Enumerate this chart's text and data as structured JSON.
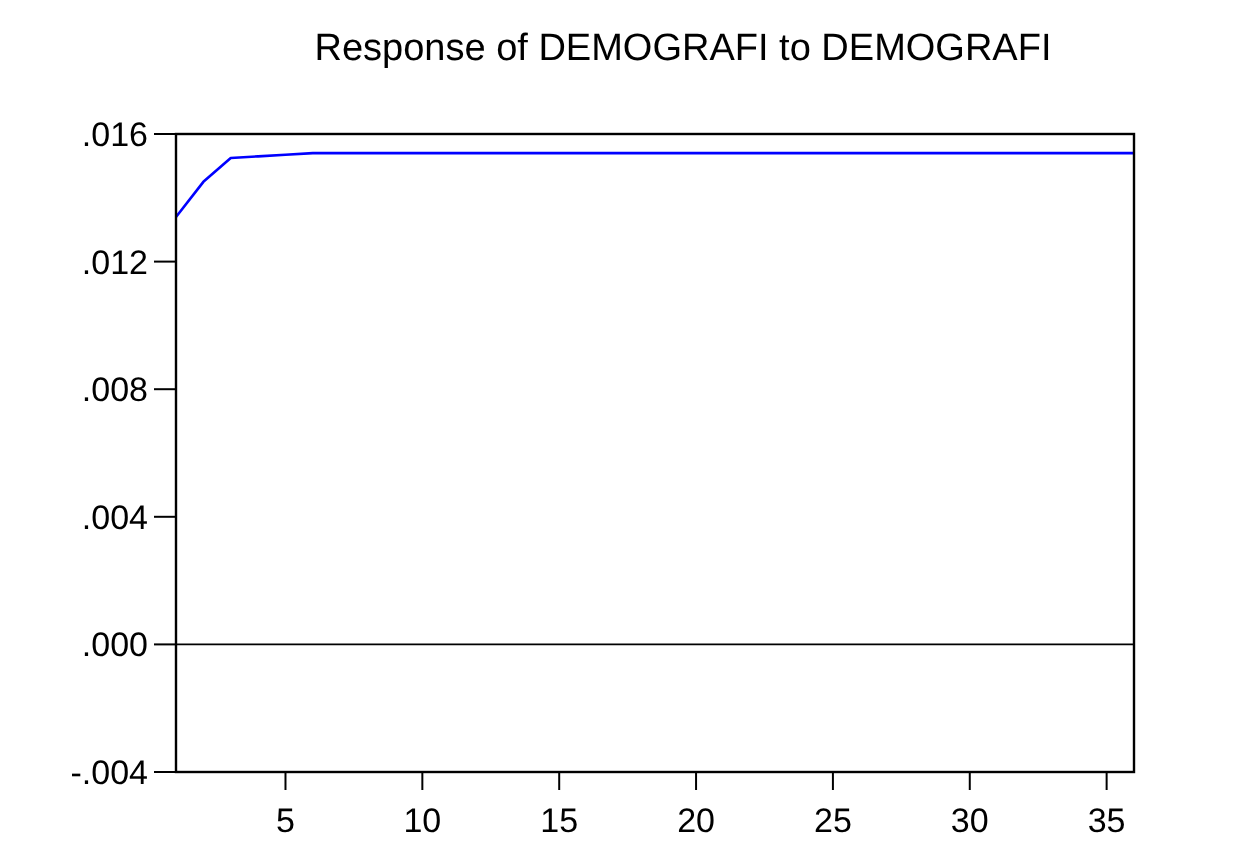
{
  "chart_data": {
    "type": "line",
    "title": "Response of DEMOGRAFI to DEMOGRAFI",
    "x": [
      1,
      2,
      3,
      4,
      5,
      6,
      7,
      8,
      9,
      10,
      11,
      12,
      13,
      14,
      15,
      16,
      17,
      18,
      19,
      20,
      21,
      22,
      23,
      24,
      25,
      26,
      27,
      28,
      29,
      30,
      31,
      32,
      33,
      34,
      35,
      36
    ],
    "series": [
      {
        "color": "#0000ff",
        "values": [
          0.0134,
          0.0145,
          0.01525,
          0.0153,
          0.01535,
          0.0154,
          0.0154,
          0.0154,
          0.0154,
          0.0154,
          0.0154,
          0.0154,
          0.0154,
          0.0154,
          0.0154,
          0.0154,
          0.0154,
          0.0154,
          0.0154,
          0.0154,
          0.0154,
          0.0154,
          0.0154,
          0.0154,
          0.0154,
          0.0154,
          0.0154,
          0.0154,
          0.0154,
          0.0154,
          0.0154,
          0.0154,
          0.0154,
          0.0154,
          0.0154,
          0.0154
        ]
      }
    ],
    "xlim": [
      1,
      36
    ],
    "xticks": [
      5,
      10,
      15,
      20,
      25,
      30,
      35
    ],
    "ylim": [
      -0.004,
      0.016
    ],
    "yticks": [
      {
        "value": -0.004,
        "label": "-.004"
      },
      {
        "value": 0,
        "label": ".000"
      },
      {
        "value": 0.004,
        "label": ".004"
      },
      {
        "value": 0.008,
        "label": ".008"
      },
      {
        "value": 0.012,
        "label": ".012"
      },
      {
        "value": 0.016,
        "label": ".016"
      }
    ],
    "ref_lines": [
      {
        "axis": "y",
        "value": 0,
        "color": "#000000"
      }
    ],
    "grid": false
  }
}
